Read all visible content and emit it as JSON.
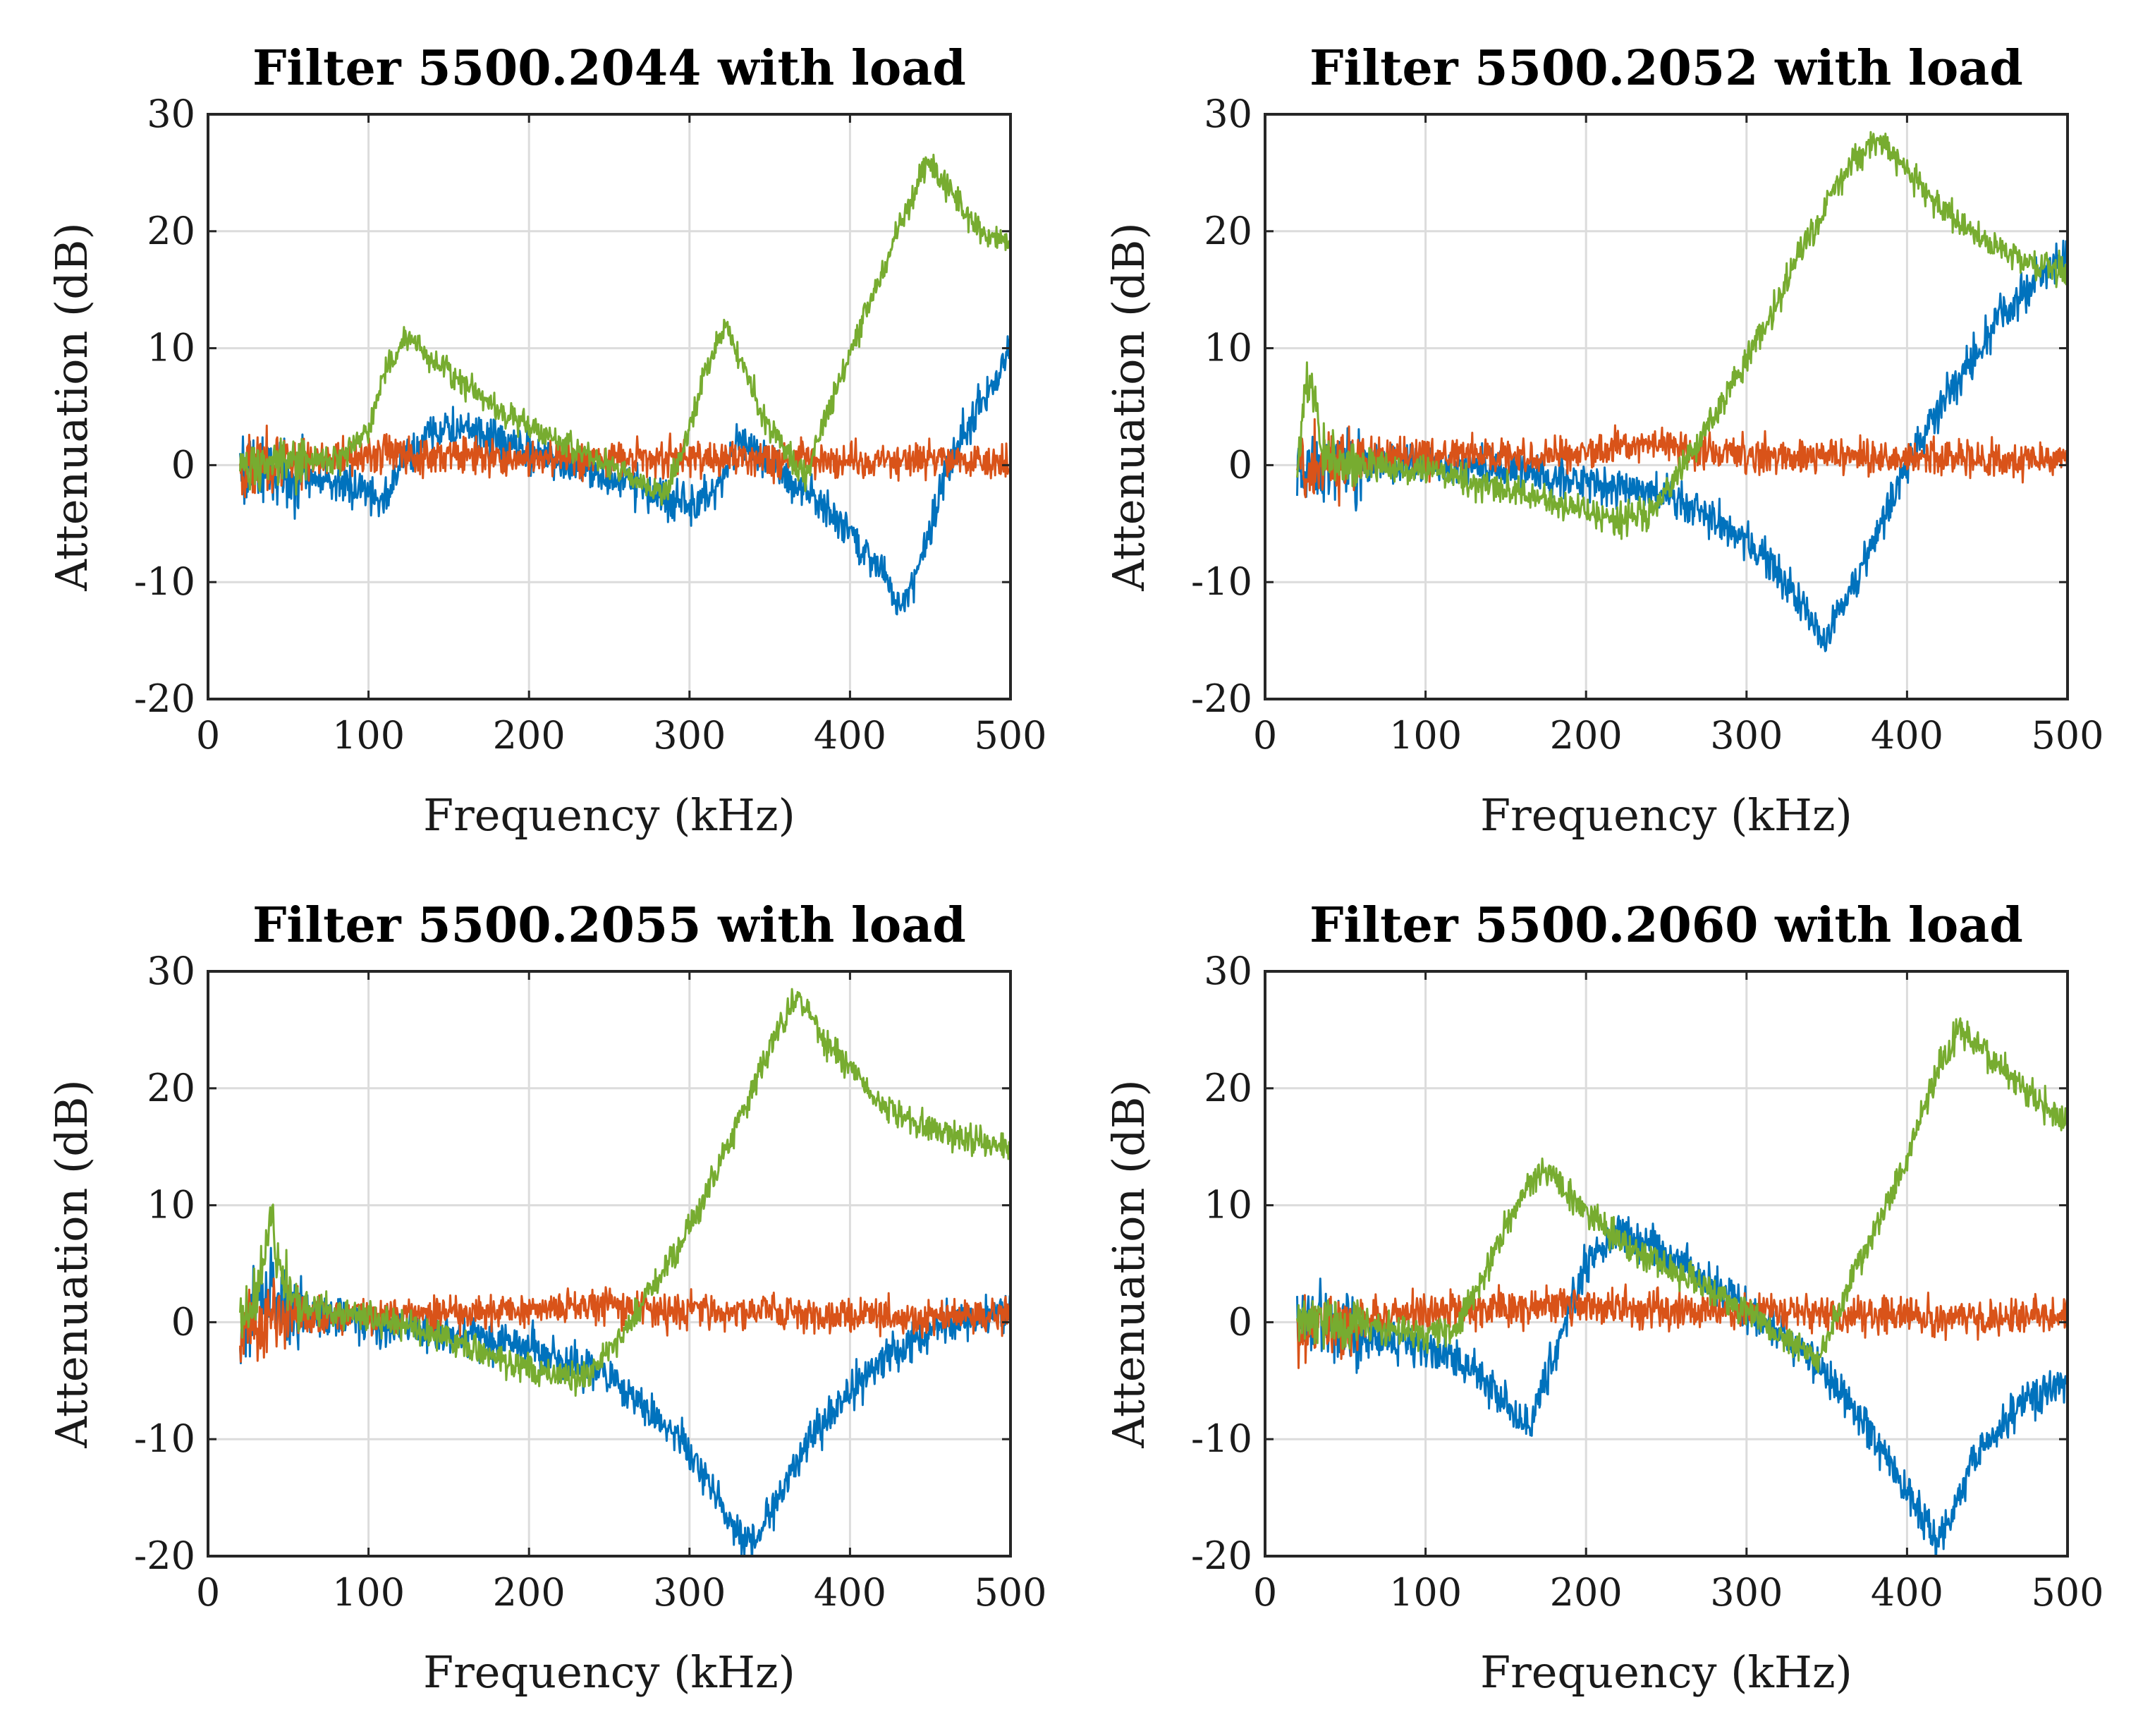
{
  "series_colors": {
    "blue": "#0072BD",
    "orange": "#D95319",
    "green": "#77AC30"
  },
  "chart_data": [
    {
      "type": "line",
      "title": "Filter 5500.2044 with load",
      "xlabel": "Frequency (kHz)",
      "ylabel": "Attenuation (dB)",
      "xlim": [
        0,
        500
      ],
      "ylim": [
        -20,
        30
      ],
      "xticks": [
        0,
        100,
        200,
        300,
        400,
        500
      ],
      "yticks": [
        -20,
        -10,
        0,
        10,
        20,
        30
      ],
      "grid": true,
      "series": [
        {
          "name": "blue",
          "color_key": "blue",
          "noise": 1.3,
          "x": [
            20,
            40,
            60,
            80,
            95,
            110,
            120,
            140,
            160,
            180,
            200,
            230,
            260,
            280,
            300,
            320,
            330,
            345,
            360,
            380,
            400,
            420,
            432,
            445,
            460,
            480,
            500
          ],
          "y": [
            0,
            -0.5,
            -1,
            -1.5,
            -2,
            -3,
            0,
            3,
            3,
            2,
            1,
            0,
            -1.5,
            -2.5,
            -3.5,
            -2,
            2,
            1,
            -1,
            -3,
            -6,
            -9,
            -12,
            -8,
            0,
            5,
            10
          ]
        },
        {
          "name": "orange",
          "color_key": "orange",
          "noise": 1.2,
          "x": [
            20,
            50,
            100,
            150,
            200,
            300,
            400,
            500
          ],
          "y": [
            0,
            0.3,
            1,
            0.8,
            0.5,
            0.6,
            0.5,
            0.5
          ]
        },
        {
          "name": "green",
          "color_key": "green",
          "noise": 0.9,
          "x": [
            20,
            50,
            80,
            100,
            110,
            125,
            140,
            160,
            190,
            220,
            250,
            270,
            285,
            300,
            310,
            322,
            335,
            350,
            372,
            390,
            410,
            430,
            448,
            460,
            480,
            500
          ],
          "y": [
            0,
            0,
            0.5,
            3,
            8,
            11,
            9,
            7,
            4,
            2,
            0,
            -1.5,
            -2.5,
            3,
            8,
            12,
            8,
            3,
            -1,
            6,
            13,
            20,
            26,
            24,
            20,
            19
          ]
        }
      ]
    },
    {
      "type": "line",
      "title": "Filter 5500.2052 with load",
      "xlabel": "Frequency (kHz)",
      "ylabel": "Attenuation (dB)",
      "xlim": [
        0,
        500
      ],
      "ylim": [
        -20,
        30
      ],
      "xticks": [
        0,
        100,
        200,
        300,
        400,
        500
      ],
      "yticks": [
        -20,
        -10,
        0,
        10,
        20,
        30
      ],
      "grid": true,
      "series": [
        {
          "name": "blue",
          "color_key": "blue",
          "noise": 1.3,
          "x": [
            20,
            50,
            100,
            150,
            200,
            250,
            280,
            310,
            330,
            348,
            365,
            380,
            400,
            430,
            460,
            490,
            500
          ],
          "y": [
            0,
            0,
            0,
            -0.5,
            -1.5,
            -2.5,
            -4.5,
            -8,
            -11,
            -15,
            -11,
            -6,
            0,
            7,
            13,
            17,
            18
          ]
        },
        {
          "name": "orange",
          "color_key": "orange",
          "noise": 1.2,
          "x": [
            20,
            60,
            120,
            200,
            240,
            280,
            350,
            420,
            500
          ],
          "y": [
            0,
            0.5,
            0.8,
            1,
            2,
            1,
            0.7,
            0.5,
            0.5
          ]
        },
        {
          "name": "green",
          "color_key": "green",
          "noise": 1.0,
          "x": [
            20,
            25,
            30,
            35,
            45,
            60,
            100,
            150,
            200,
            220,
            240,
            270,
            300,
            330,
            360,
            380,
            395,
            420,
            450,
            480,
            500
          ],
          "y": [
            0,
            6,
            7,
            1,
            0,
            0,
            -0.5,
            -2,
            -4,
            -5,
            -4,
            2,
            9,
            17,
            25,
            28,
            26,
            22,
            19,
            17,
            16.5
          ]
        }
      ]
    },
    {
      "type": "line",
      "title": "Filter 5500.2055 with load",
      "xlabel": "Frequency (kHz)",
      "ylabel": "Attenuation (dB)",
      "xlim": [
        0,
        500
      ],
      "ylim": [
        -20,
        30
      ],
      "xticks": [
        0,
        100,
        200,
        300,
        400,
        500
      ],
      "yticks": [
        -20,
        -10,
        0,
        10,
        20,
        30
      ],
      "grid": true,
      "series": [
        {
          "name": "blue",
          "color_key": "blue",
          "noise": 1.3,
          "x": [
            20,
            30,
            40,
            60,
            100,
            150,
            200,
            250,
            280,
            310,
            325,
            340,
            355,
            380,
            420,
            460,
            500
          ],
          "y": [
            -2,
            2,
            2,
            1,
            0,
            -1,
            -2,
            -5,
            -8,
            -13,
            -17,
            -19,
            -15,
            -9,
            -3,
            0,
            1
          ]
        },
        {
          "name": "orange",
          "color_key": "orange",
          "noise": 1.2,
          "x": [
            20,
            40,
            80,
            150,
            200,
            240,
            280,
            350,
            420,
            500
          ],
          "y": [
            -1,
            0.5,
            0.5,
            0.8,
            1,
            1.5,
            1,
            0.8,
            0.5,
            0.5
          ]
        },
        {
          "name": "green",
          "color_key": "green",
          "noise": 1.0,
          "x": [
            20,
            30,
            35,
            40,
            45,
            55,
            80,
            120,
            160,
            200,
            230,
            260,
            300,
            330,
            355,
            368,
            385,
            420,
            460,
            500
          ],
          "y": [
            0,
            2,
            6,
            9,
            4,
            1.5,
            1,
            0,
            -2,
            -4,
            -5,
            -1,
            8,
            17,
            25,
            28,
            24,
            18.5,
            16,
            15
          ]
        }
      ]
    },
    {
      "type": "line",
      "title": "Filter 5500.2060 with load",
      "xlabel": "Frequency (kHz)",
      "ylabel": "Attenuation (dB)",
      "xlim": [
        0,
        500
      ],
      "ylim": [
        -20,
        30
      ],
      "xticks": [
        0,
        100,
        200,
        300,
        400,
        500
      ],
      "yticks": [
        -20,
        -10,
        0,
        10,
        20,
        30
      ],
      "grid": true,
      "series": [
        {
          "name": "blue",
          "color_key": "blue",
          "noise": 1.3,
          "x": [
            20,
            60,
            100,
            130,
            150,
            165,
            180,
            200,
            220,
            260,
            300,
            330,
            360,
            390,
            410,
            420,
            440,
            470,
            500
          ],
          "y": [
            0,
            -1,
            -2,
            -4,
            -7,
            -9,
            -3,
            5,
            8,
            5,
            1,
            -2,
            -6,
            -12,
            -17,
            -19,
            -12,
            -7,
            -5
          ]
        },
        {
          "name": "orange",
          "color_key": "orange",
          "noise": 1.2,
          "x": [
            20,
            60,
            120,
            180,
            240,
            300,
            400,
            500
          ],
          "y": [
            -1,
            0.5,
            1,
            1.5,
            1,
            0.8,
            0.5,
            0.5
          ]
        },
        {
          "name": "green",
          "color_key": "green",
          "noise": 1.0,
          "x": [
            20,
            60,
            100,
            120,
            140,
            160,
            175,
            190,
            220,
            260,
            300,
            330,
            345,
            370,
            400,
            420,
            433,
            450,
            480,
            500
          ],
          "y": [
            0,
            0,
            -1,
            -0.5,
            5,
            11,
            13,
            11,
            7,
            4,
            1,
            -2,
            -3,
            5,
            14,
            22,
            25,
            23,
            19,
            17
          ]
        }
      ]
    }
  ]
}
